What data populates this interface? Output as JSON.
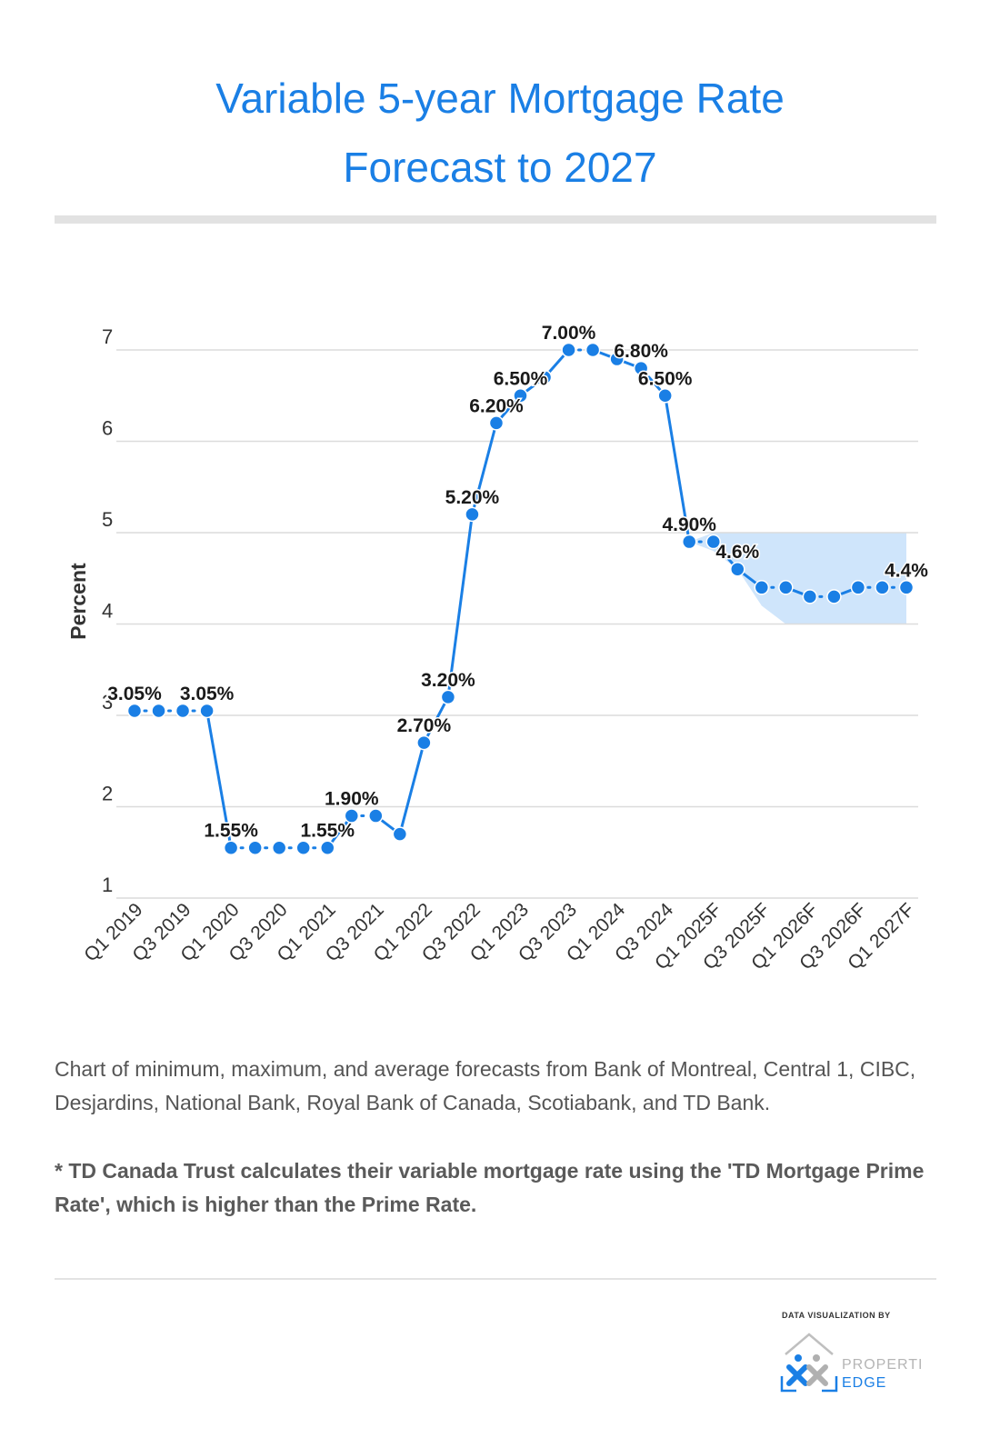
{
  "header": {
    "title_line1": "Variable 5-year Mortgage Rate",
    "title_line2": "Forecast to 2027"
  },
  "chart_data": {
    "type": "line",
    "ylabel": "Percent",
    "ylim": [
      1,
      7
    ],
    "yticks": [
      1,
      2,
      3,
      4,
      5,
      6,
      7
    ],
    "grid": true,
    "x_tick_labels": [
      "Q1 2019",
      "Q3 2019",
      "Q1 2020",
      "Q3 2020",
      "Q1 2021",
      "Q3 2021",
      "Q1 2022",
      "Q3 2022",
      "Q1 2023",
      "Q3 2023",
      "Q1 2024",
      "Q3 2024",
      "Q1 2025F",
      "Q3 2025F",
      "Q1 2026F",
      "Q3 2026F",
      "Q1 2027F"
    ],
    "series": [
      {
        "color": "#1a7fe5",
        "values": [
          3.05,
          3.05,
          3.05,
          3.05,
          1.55,
          1.55,
          1.55,
          1.55,
          1.55,
          1.9,
          1.9,
          1.7,
          2.7,
          3.2,
          5.2,
          6.2,
          6.5,
          6.7,
          7.0,
          7.0,
          6.9,
          6.8,
          6.5,
          4.9,
          4.9,
          4.6,
          4.4,
          4.4,
          4.3,
          4.3,
          4.4,
          4.4,
          4.4
        ]
      }
    ],
    "data_labels": [
      {
        "index": 0,
        "text": "3.05%"
      },
      {
        "index": 3,
        "text": "3.05%"
      },
      {
        "index": 4,
        "text": "1.55%"
      },
      {
        "index": 8,
        "text": "1.55%"
      },
      {
        "index": 9,
        "text": "1.90%"
      },
      {
        "index": 12,
        "text": "2.70%"
      },
      {
        "index": 13,
        "text": "3.20%"
      },
      {
        "index": 14,
        "text": "5.20%"
      },
      {
        "index": 15,
        "text": "6.20%"
      },
      {
        "index": 16,
        "text": "6.50%"
      },
      {
        "index": 18,
        "text": "7.00%"
      },
      {
        "index": 21,
        "text": "6.80%"
      },
      {
        "index": 22,
        "text": "6.50%"
      },
      {
        "index": 23,
        "text": "4.90%"
      },
      {
        "index": 25,
        "text": "4.6%"
      },
      {
        "index": 32,
        "text": "4.4%"
      }
    ],
    "forecast_range": {
      "start_index": 23,
      "upper": [
        4.9,
        5.0,
        5.0,
        5.0,
        5.0,
        5.0,
        5.0,
        5.0,
        5.0,
        5.0
      ],
      "lower": [
        4.9,
        4.8,
        4.6,
        4.2,
        4.0,
        4.0,
        4.0,
        4.0,
        4.0,
        4.0
      ],
      "color": "#cfe5fb"
    }
  },
  "notes": {
    "sources": "Chart of minimum, maximum, and average forecasts from Bank of Montreal, Central 1, CIBC, Desjardins, National Bank, Royal Bank of Canada, Scotiabank, and TD Bank.",
    "td_note": "* TD Canada Trust calculates their variable mortgage rate using the 'TD Mortgage Prime Rate', which is higher than the Prime Rate."
  },
  "footer": {
    "credit": "DATA VISUALIZATION BY",
    "logo_line1": "PROPERTI",
    "logo_line2": "EDGE"
  },
  "colors": {
    "accent": "#1a7fe5",
    "band": "#cfe5fb",
    "grid": "#dcdcdc"
  }
}
